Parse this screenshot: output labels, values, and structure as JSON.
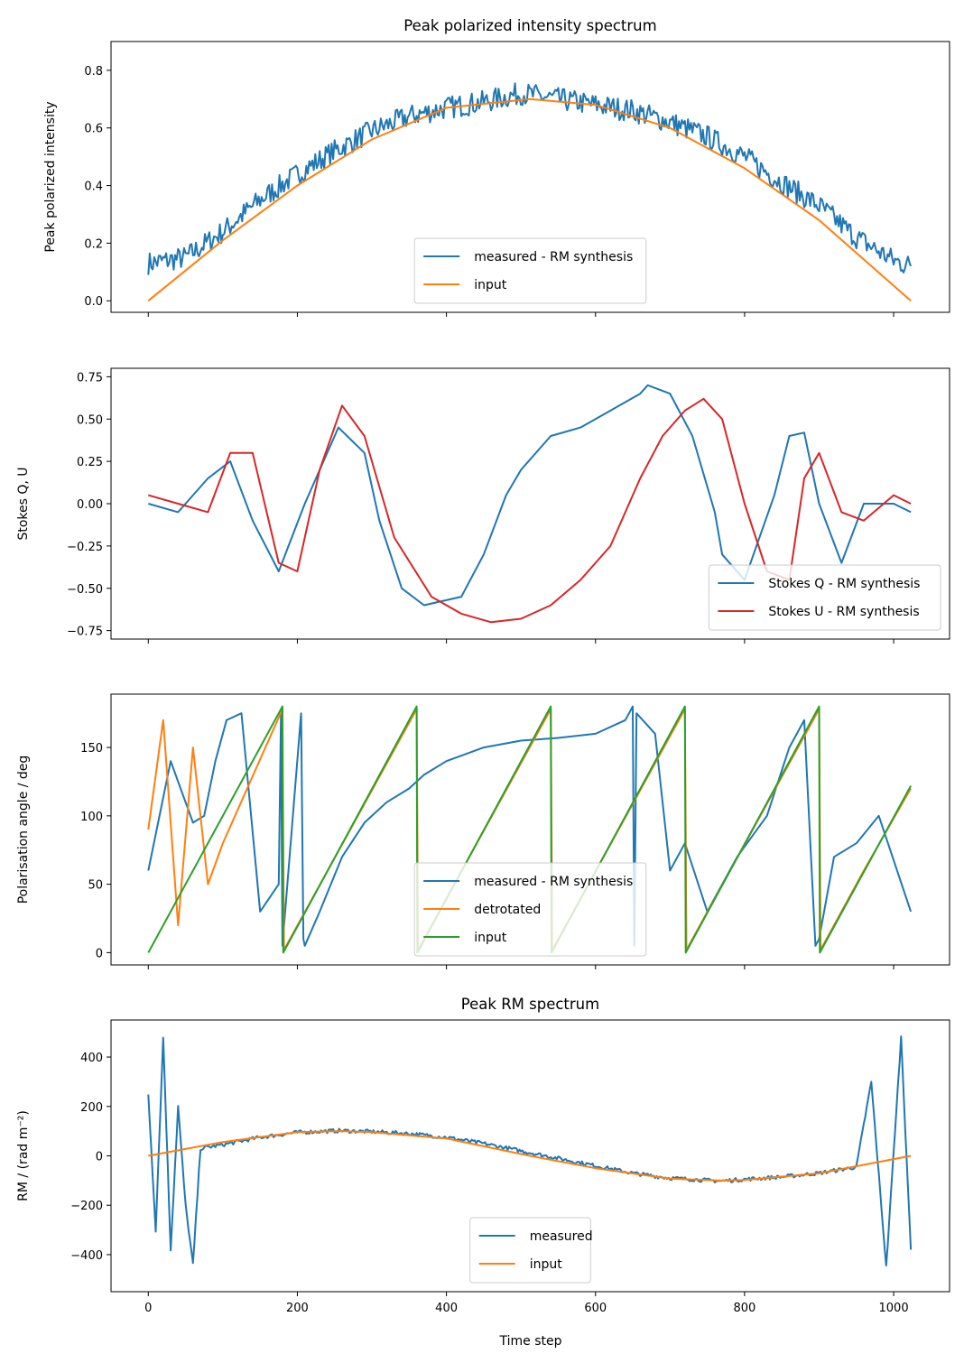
{
  "shared_x": {
    "label": "Time step",
    "ticks": [
      0,
      200,
      400,
      600,
      800,
      1000
    ],
    "tick_labels": [
      "0",
      "200",
      "400",
      "600",
      "800",
      "1000"
    ],
    "lim": [
      -50,
      1075
    ]
  },
  "colors": {
    "blue": "#1f77b4",
    "orange": "#ff7f0e",
    "green": "#2ca02c",
    "red": "#d62728"
  },
  "chart_data": [
    {
      "type": "line",
      "title": "Peak polarized intensity spectrum",
      "ylabel": "Peak polarized intensity",
      "ylim": [
        -0.04,
        0.9
      ],
      "yticks": [
        0.0,
        0.2,
        0.4,
        0.6,
        0.8
      ],
      "ytick_labels": [
        "0.0",
        "0.2",
        "0.4",
        "0.6",
        "0.8"
      ],
      "legend_position": "lower-center",
      "series": [
        {
          "name": "measured - RM synthesis",
          "color": "#1f77b4",
          "x": [
            0,
            50,
            100,
            150,
            200,
            250,
            300,
            350,
            400,
            450,
            500,
            550,
            600,
            650,
            700,
            750,
            800,
            850,
            900,
            950,
            1000,
            1023
          ],
          "y": [
            0.13,
            0.15,
            0.24,
            0.35,
            0.44,
            0.52,
            0.59,
            0.64,
            0.67,
            0.69,
            0.72,
            0.7,
            0.68,
            0.66,
            0.62,
            0.57,
            0.5,
            0.41,
            0.33,
            0.22,
            0.14,
            0.12
          ],
          "noise": 0.04
        },
        {
          "name": "input",
          "color": "#ff7f0e",
          "x": [
            0,
            100,
            200,
            300,
            400,
            512,
            600,
            700,
            800,
            900,
            1023
          ],
          "y": [
            0.0,
            0.21,
            0.4,
            0.56,
            0.67,
            0.7,
            0.68,
            0.6,
            0.46,
            0.28,
            0.0
          ]
        }
      ]
    },
    {
      "type": "line",
      "title": "",
      "ylabel": "Stokes Q, U",
      "ylim": [
        -0.8,
        0.8
      ],
      "yticks": [
        -0.75,
        -0.5,
        -0.25,
        0.0,
        0.25,
        0.5,
        0.75
      ],
      "ytick_labels": [
        "−0.75",
        "−0.50",
        "−0.25",
        "0.00",
        "0.25",
        "0.50",
        "0.75"
      ],
      "legend_position": "lower-right",
      "series": [
        {
          "name": "Stokes Q - RM synthesis",
          "color": "#1f77b4",
          "x": [
            0,
            40,
            80,
            110,
            140,
            175,
            210,
            255,
            290,
            310,
            340,
            370,
            420,
            450,
            480,
            500,
            540,
            580,
            620,
            660,
            670,
            700,
            730,
            760,
            770,
            800,
            840,
            860,
            880,
            900,
            930,
            960,
            1000,
            1023
          ],
          "y": [
            0.0,
            -0.05,
            0.15,
            0.25,
            -0.1,
            -0.4,
            0.0,
            0.45,
            0.3,
            -0.1,
            -0.5,
            -0.6,
            -0.55,
            -0.3,
            0.05,
            0.2,
            0.4,
            0.45,
            0.55,
            0.65,
            0.7,
            0.65,
            0.4,
            -0.05,
            -0.3,
            -0.45,
            0.05,
            0.4,
            0.42,
            0.0,
            -0.35,
            0.0,
            0.0,
            -0.05
          ]
        },
        {
          "name": "Stokes U - RM synthesis",
          "color": "#d62728",
          "x": [
            0,
            40,
            80,
            110,
            140,
            175,
            200,
            230,
            260,
            290,
            330,
            380,
            420,
            460,
            500,
            540,
            580,
            620,
            660,
            690,
            720,
            745,
            770,
            800,
            830,
            860,
            880,
            900,
            930,
            960,
            1000,
            1023
          ],
          "y": [
            0.05,
            0.0,
            -0.05,
            0.3,
            0.3,
            -0.35,
            -0.4,
            0.2,
            0.58,
            0.4,
            -0.2,
            -0.55,
            -0.65,
            -0.7,
            -0.68,
            -0.6,
            -0.45,
            -0.25,
            0.15,
            0.4,
            0.55,
            0.62,
            0.5,
            0.0,
            -0.4,
            -0.45,
            0.15,
            0.3,
            -0.05,
            -0.1,
            0.05,
            0.0
          ]
        }
      ]
    },
    {
      "type": "line",
      "title": "",
      "ylabel": "Polarisation angle / deg",
      "ylim": [
        -9,
        189
      ],
      "yticks": [
        0,
        50,
        100,
        150
      ],
      "ytick_labels": [
        "0",
        "50",
        "100",
        "150"
      ],
      "legend_position": "lower-center",
      "series": [
        {
          "name": "measured - RM synthesis",
          "color": "#1f77b4",
          "x": [
            0,
            30,
            60,
            75,
            90,
            105,
            125,
            150,
            175,
            178,
            180,
            205,
            208,
            210,
            230,
            260,
            290,
            320,
            350,
            370,
            400,
            450,
            500,
            550,
            600,
            640,
            650,
            652,
            655,
            680,
            700,
            720,
            750,
            790,
            830,
            860,
            880,
            895,
            900,
            920,
            950,
            980,
            1023
          ],
          "y": [
            60,
            140,
            95,
            100,
            140,
            170,
            175,
            30,
            50,
            175,
            5,
            175,
            10,
            5,
            30,
            70,
            95,
            110,
            120,
            130,
            140,
            150,
            155,
            157,
            160,
            170,
            180,
            5,
            175,
            160,
            60,
            80,
            30,
            70,
            100,
            150,
            170,
            5,
            10,
            70,
            80,
            100,
            30
          ]
        },
        {
          "name": "detrotated",
          "color": "#ff7f0e",
          "x": [
            0,
            20,
            40,
            60,
            80,
            100,
            180,
            182,
            360,
            362,
            540,
            542,
            720,
            722,
            900,
            902,
            960,
            1023
          ],
          "y": [
            90,
            170,
            20,
            150,
            50,
            80,
            178,
            2,
            178,
            2,
            178,
            2,
            178,
            2,
            178,
            2,
            60,
            120
          ]
        },
        {
          "name": "input",
          "color": "#2ca02c",
          "x": [
            0,
            180,
            181,
            360,
            361,
            540,
            541,
            720,
            721,
            900,
            901,
            1023
          ],
          "y": [
            0,
            180,
            0,
            180,
            0,
            180,
            0,
            180,
            0,
            180,
            0,
            122
          ]
        }
      ]
    },
    {
      "type": "line",
      "title": "Peak RM spectrum",
      "ylabel": "RM / (rad m⁻²)",
      "ylim": [
        -550,
        550
      ],
      "yticks": [
        -400,
        -200,
        0,
        200,
        400
      ],
      "ytick_labels": [
        "−400",
        "−200",
        "0",
        "200",
        "400"
      ],
      "legend_position": "lower-center",
      "series": [
        {
          "name": "measured",
          "color": "#1f77b4",
          "x": [
            0,
            10,
            20,
            30,
            40,
            50,
            60,
            70,
            100,
            150,
            200,
            256,
            300,
            350,
            400,
            450,
            500,
            550,
            600,
            650,
            700,
            768,
            800,
            850,
            900,
            950,
            970,
            990,
            1010,
            1023
          ],
          "y": [
            250,
            -300,
            480,
            -380,
            200,
            -200,
            -440,
            30,
            45,
            75,
            95,
            102,
            98,
            90,
            75,
            50,
            20,
            -10,
            -40,
            -70,
            -90,
            -102,
            -95,
            -85,
            -70,
            -45,
            300,
            -450,
            480,
            -380
          ],
          "noise": 8
        },
        {
          "name": "input",
          "color": "#ff7f0e",
          "x": [
            0,
            100,
            200,
            256,
            300,
            400,
            512,
            600,
            700,
            768,
            800,
            900,
            1023
          ],
          "y": [
            0,
            56,
            96,
            100,
            96,
            70,
            0,
            -50,
            -92,
            -100,
            -98,
            -71,
            0
          ]
        }
      ]
    }
  ]
}
